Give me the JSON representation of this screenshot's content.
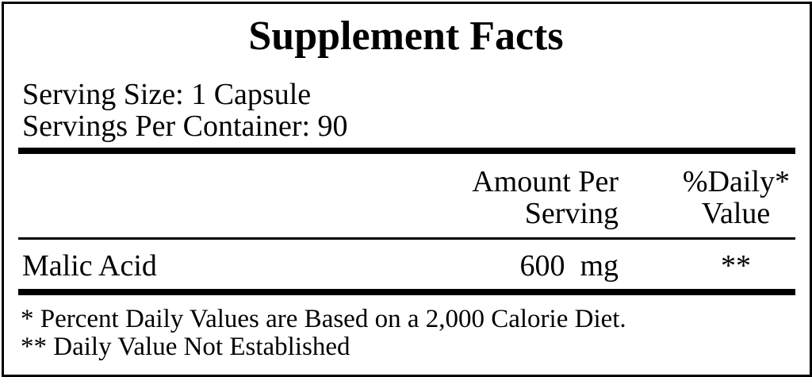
{
  "title": "Supplement Facts",
  "serving_size": "Serving Size: 1 Capsule",
  "servings_per_container": "Servings Per Container: 90",
  "header": {
    "amount_line1": "Amount Per",
    "amount_line2": "Serving",
    "dv_line1": "%Daily*",
    "dv_line2": "Value"
  },
  "rows": [
    {
      "name": "Malic Acid",
      "amount": "600  mg",
      "dv": "**"
    }
  ],
  "footnotes": [
    "* Percent Daily Values are Based on a 2,000 Calorie Diet.",
    "** Daily Value Not Established"
  ]
}
